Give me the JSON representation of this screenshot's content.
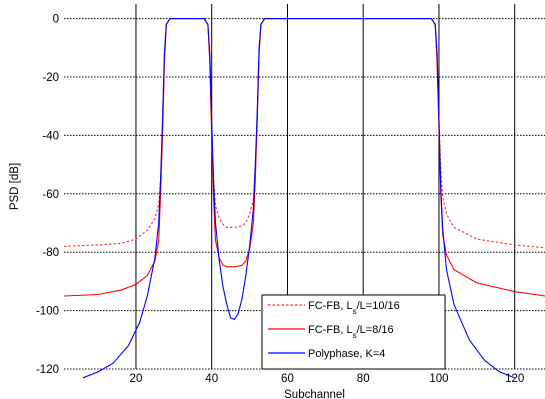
{
  "chart_data": {
    "type": "line",
    "title": "",
    "xlabel": "Subchannel",
    "ylabel": "PSD [dB]",
    "xlim": [
      1,
      128
    ],
    "ylim": [
      -120,
      5
    ],
    "xticks": [
      20,
      40,
      60,
      80,
      100,
      120
    ],
    "yticks": [
      0,
      -20,
      -40,
      -60,
      -80,
      -100,
      -120
    ],
    "grid": {
      "x": "solid",
      "y": "dotted"
    },
    "legend_position": "bottom-right",
    "series": [
      {
        "name": "FC-FB, L_s/L=10/16",
        "legend": {
          "pre": "FC-FB, L",
          "sub": "s",
          "post": "/L=10/16"
        },
        "color": "#ff3333",
        "style": "dashed",
        "x": [
          1,
          10,
          16,
          20,
          23,
          25,
          26,
          26.5,
          27,
          27.5,
          28,
          29,
          38,
          39,
          39.5,
          40,
          40.5,
          41,
          42,
          43,
          44,
          46,
          48,
          49,
          50,
          51,
          51.5,
          52,
          52.5,
          53,
          54,
          98,
          99,
          99.5,
          100,
          100.5,
          101,
          102,
          104,
          110,
          120,
          128
        ],
        "y": [
          -78,
          -77.5,
          -77,
          -75.5,
          -72.5,
          -68.5,
          -63.5,
          -55,
          -38,
          -15,
          -2,
          0,
          0,
          -2,
          -15,
          -38,
          -55,
          -64,
          -68.5,
          -70.5,
          -71.5,
          -71.5,
          -71,
          -70,
          -67,
          -62,
          -50,
          -35,
          -12,
          -2,
          0,
          0,
          -2,
          -15,
          -35,
          -52,
          -61,
          -67,
          -71.5,
          -75.5,
          -77.5,
          -78.5
        ]
      },
      {
        "name": "FC-FB, L_s/L=8/16",
        "legend": {
          "pre": "FC-FB, L",
          "sub": "s",
          "post": "/L=8/16"
        },
        "color": "#ff0000",
        "style": "solid",
        "x": [
          1,
          10,
          16,
          20,
          23,
          25,
          26,
          26.5,
          27,
          27.5,
          28,
          29,
          38,
          39,
          39.5,
          40,
          40.5,
          41,
          42,
          43,
          44,
          46,
          48,
          49,
          50,
          51,
          51.5,
          52,
          52.5,
          53,
          54,
          98,
          99,
          99.5,
          100,
          100.5,
          101,
          102,
          104,
          110,
          120,
          128
        ],
        "y": [
          -95,
          -94.5,
          -93,
          -91,
          -88,
          -83,
          -76,
          -60,
          -40,
          -15,
          -2,
          0,
          0,
          -2,
          -15,
          -40,
          -62,
          -76,
          -82,
          -84.5,
          -85,
          -85,
          -84.5,
          -83,
          -79,
          -70,
          -55,
          -35,
          -12,
          -2,
          0,
          0,
          -2,
          -15,
          -38,
          -60,
          -74,
          -81,
          -86,
          -90.5,
          -93.5,
          -95
        ]
      },
      {
        "name": "Polyphase, K=4",
        "legend": {
          "pre": "Polyphase, K=4",
          "sub": "",
          "post": ""
        },
        "color": "#0000ff",
        "style": "solid",
        "x": [
          6,
          10,
          14,
          18,
          21,
          23,
          25,
          26,
          26.5,
          27,
          27.5,
          28,
          29,
          38,
          39,
          39.5,
          40,
          40.5,
          41,
          42,
          43,
          44,
          45,
          46,
          47,
          48,
          49,
          50,
          51,
          51.5,
          52,
          52.5,
          53,
          54,
          98,
          99,
          99.5,
          100,
          100.5,
          101,
          102,
          104,
          108,
          112,
          116,
          120
        ],
        "y": [
          -123,
          -121,
          -118,
          -112,
          -104,
          -95,
          -82,
          -70,
          -55,
          -35,
          -12,
          -2,
          0,
          0,
          -2,
          -12,
          -35,
          -56,
          -70,
          -83,
          -92,
          -98,
          -102.5,
          -103,
          -101,
          -96,
          -88,
          -78,
          -65,
          -50,
          -32,
          -10,
          -2,
          0,
          0,
          -2,
          -12,
          -35,
          -58,
          -72,
          -86,
          -98,
          -110,
          -117,
          -121,
          -123
        ]
      }
    ]
  }
}
